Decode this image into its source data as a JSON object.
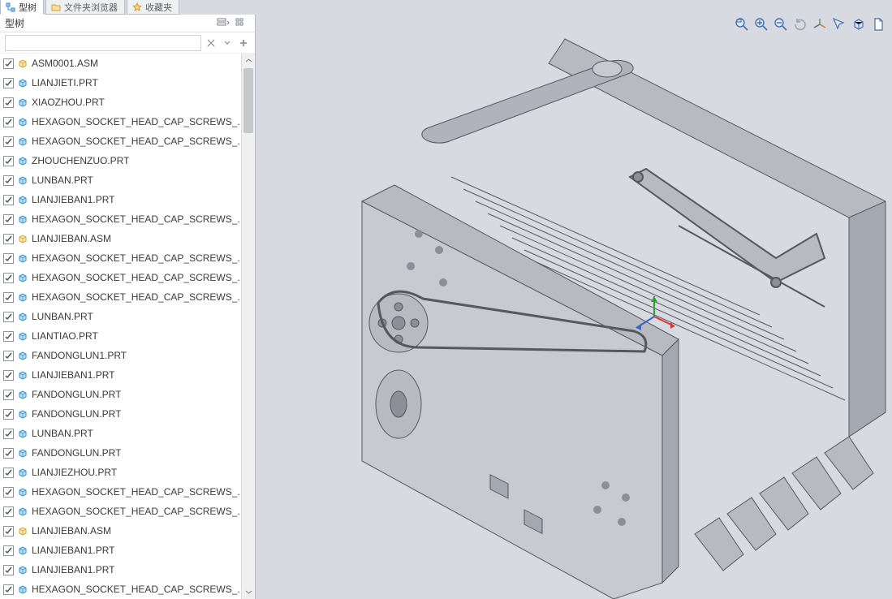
{
  "tabs": [
    {
      "label": "型树",
      "icon": "tree-icon",
      "active": true
    },
    {
      "label": "文件夹浏览器",
      "icon": "folder-icon",
      "active": false
    },
    {
      "label": "收藏夹",
      "icon": "star-icon",
      "active": false
    }
  ],
  "panel": {
    "title": "型树",
    "search_value": "",
    "search_placeholder": ""
  },
  "toolbar_icons": [
    "zoom-window-icon",
    "zoom-in-icon",
    "zoom-out-icon",
    "spin-icon",
    "orient-icon",
    "pan-icon",
    "box-icon",
    "page-icon"
  ],
  "tree_items": [
    {
      "type": "asm",
      "label": "ASM0001.ASM"
    },
    {
      "type": "part",
      "label": "LIANJIETI.PRT"
    },
    {
      "type": "part",
      "label": "XIAOZHOU.PRT"
    },
    {
      "type": "part",
      "label": "HEXAGON_SOCKET_HEAD_CAP_SCREWS_."
    },
    {
      "type": "part",
      "label": "HEXAGON_SOCKET_HEAD_CAP_SCREWS_."
    },
    {
      "type": "part",
      "label": "ZHOUCHENZUO.PRT"
    },
    {
      "type": "part",
      "label": "LUNBAN.PRT"
    },
    {
      "type": "part",
      "label": "LIANJIEBAN1.PRT"
    },
    {
      "type": "part",
      "label": "HEXAGON_SOCKET_HEAD_CAP_SCREWS_."
    },
    {
      "type": "asm",
      "label": "LIANJIEBAN.ASM"
    },
    {
      "type": "part",
      "label": "HEXAGON_SOCKET_HEAD_CAP_SCREWS_."
    },
    {
      "type": "part",
      "label": "HEXAGON_SOCKET_HEAD_CAP_SCREWS_."
    },
    {
      "type": "part",
      "label": "HEXAGON_SOCKET_HEAD_CAP_SCREWS_."
    },
    {
      "type": "part",
      "label": "LUNBAN.PRT"
    },
    {
      "type": "part",
      "label": "LIANTIAO.PRT"
    },
    {
      "type": "part",
      "label": "FANDONGLUN1.PRT"
    },
    {
      "type": "part",
      "label": "LIANJIEBAN1.PRT"
    },
    {
      "type": "part",
      "label": "FANDONGLUN.PRT"
    },
    {
      "type": "part",
      "label": "FANDONGLUN.PRT"
    },
    {
      "type": "part",
      "label": "LUNBAN.PRT"
    },
    {
      "type": "part",
      "label": "FANDONGLUN.PRT"
    },
    {
      "type": "part",
      "label": "LIANJIEZHOU.PRT"
    },
    {
      "type": "part",
      "label": "HEXAGON_SOCKET_HEAD_CAP_SCREWS_."
    },
    {
      "type": "part",
      "label": "HEXAGON_SOCKET_HEAD_CAP_SCREWS_."
    },
    {
      "type": "asm",
      "label": "LIANJIEBAN.ASM"
    },
    {
      "type": "part",
      "label": "LIANJIEBAN1.PRT"
    },
    {
      "type": "part",
      "label": "LIANJIEBAN1.PRT"
    },
    {
      "type": "part",
      "label": "HEXAGON_SOCKET_HEAD_CAP_SCREWS_."
    }
  ],
  "icon_colors": {
    "chk_border": "#8f9299",
    "chk_mark": "#4a4a4a",
    "part_fill": "#bfe3ff",
    "part_edge": "#3a8bd8",
    "asm_fill": "#ffe7b0",
    "asm_edge": "#d6a438"
  },
  "model_style": {
    "background": "#d7dae0",
    "edge": "#55585e",
    "face1": "#b7bac1",
    "face2": "#a4a8b0",
    "face3": "#c7cad1",
    "shaft": "#b0b3bb",
    "dark": "#8c8f97"
  },
  "triad_colors": {
    "x": "#d33",
    "y": "#2a2",
    "z": "#36c"
  },
  "toolbar_colors": {
    "mag_stroke": "#4b6ea9",
    "mag_fill": "#dbe7fb",
    "plus": "#4b6ea9",
    "minus": "#4b6ea9",
    "axis": "#d07a34",
    "cursor": "#4b6ea9",
    "box": "#4b6ea9",
    "page": "#4b6ea9"
  }
}
